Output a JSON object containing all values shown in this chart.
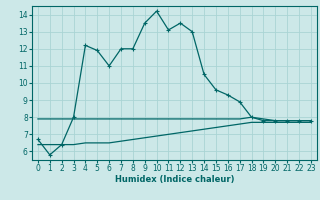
{
  "title": "",
  "xlabel": "Humidex (Indice chaleur)",
  "bg_color": "#cce8e8",
  "grid_color": "#aad4d4",
  "line_color": "#006666",
  "xlim": [
    -0.5,
    23.5
  ],
  "ylim": [
    5.5,
    14.5
  ],
  "yticks": [
    6,
    7,
    8,
    9,
    10,
    11,
    12,
    13,
    14
  ],
  "xticks": [
    0,
    1,
    2,
    3,
    4,
    5,
    6,
    7,
    8,
    9,
    10,
    11,
    12,
    13,
    14,
    15,
    16,
    17,
    18,
    19,
    20,
    21,
    22,
    23
  ],
  "line1_x": [
    0,
    1,
    2,
    3,
    4,
    5,
    6,
    7,
    8,
    9,
    10,
    11,
    12,
    13,
    14,
    15,
    16,
    17,
    18,
    19,
    20,
    21,
    22,
    23
  ],
  "line1_y": [
    6.7,
    5.8,
    6.4,
    8.0,
    12.2,
    11.9,
    11.0,
    12.0,
    12.0,
    13.5,
    14.2,
    13.1,
    13.5,
    13.0,
    10.5,
    9.6,
    9.3,
    8.9,
    8.0,
    7.8,
    7.8,
    7.8,
    7.8,
    7.8
  ],
  "line2_x": [
    0,
    1,
    2,
    3,
    4,
    5,
    6,
    7,
    8,
    9,
    10,
    11,
    12,
    13,
    14,
    15,
    16,
    17,
    18,
    19,
    20,
    21,
    22,
    23
  ],
  "line2_y": [
    7.9,
    7.9,
    7.9,
    7.9,
    7.9,
    7.9,
    7.9,
    7.9,
    7.9,
    7.9,
    7.9,
    7.9,
    7.9,
    7.9,
    7.9,
    7.9,
    7.9,
    7.9,
    8.0,
    7.9,
    7.8,
    7.8,
    7.8,
    7.8
  ],
  "line3_x": [
    0,
    1,
    2,
    3,
    4,
    5,
    6,
    7,
    8,
    9,
    10,
    11,
    12,
    13,
    14,
    15,
    16,
    17,
    18,
    19,
    20,
    21,
    22,
    23
  ],
  "line3_y": [
    6.4,
    6.4,
    6.4,
    6.4,
    6.5,
    6.5,
    6.5,
    6.6,
    6.7,
    6.8,
    6.9,
    7.0,
    7.1,
    7.2,
    7.3,
    7.4,
    7.5,
    7.6,
    7.7,
    7.7,
    7.7,
    7.7,
    7.7,
    7.7
  ],
  "xlabel_fontsize": 6,
  "tick_fontsize": 5.5,
  "linewidth": 0.9,
  "marker_size": 3
}
